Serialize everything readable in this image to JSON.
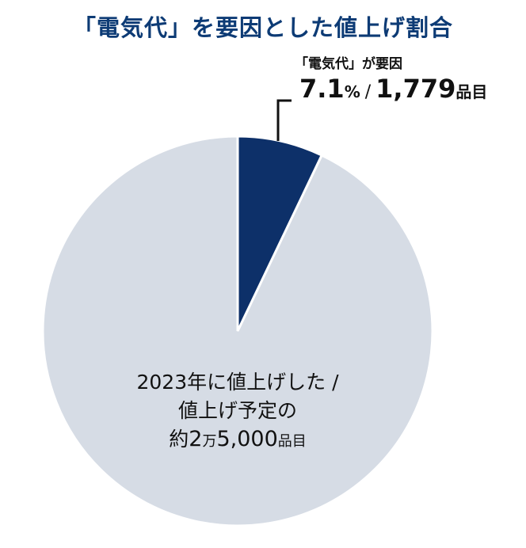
{
  "title": "「電気代」を要因とした値上げ割合",
  "callout": {
    "caption": "「電気代」が要因",
    "percent": "7.1",
    "percent_unit": "%",
    "separator": "/",
    "count": "1,779",
    "count_unit": "品目"
  },
  "center_label": {
    "line1": "2023年に値上げした /",
    "line2": "値上げ予定の",
    "line3_prefix": "約",
    "line3_num1": "2",
    "line3_man": "万",
    "line3_num2": "5,000",
    "line3_unit": "品目"
  },
  "colors": {
    "highlight": "#0d3069",
    "rest": "#d6dce5",
    "title": "#0d3b75"
  },
  "chart_data": {
    "type": "pie",
    "title": "「電気代」を要因とした値上げ割合",
    "slices": [
      {
        "label": "「電気代」が要因",
        "value": 7.1,
        "count": 1779
      },
      {
        "label": "",
        "value": 92.9
      }
    ],
    "total_items_label": "約2万5,000品目"
  }
}
